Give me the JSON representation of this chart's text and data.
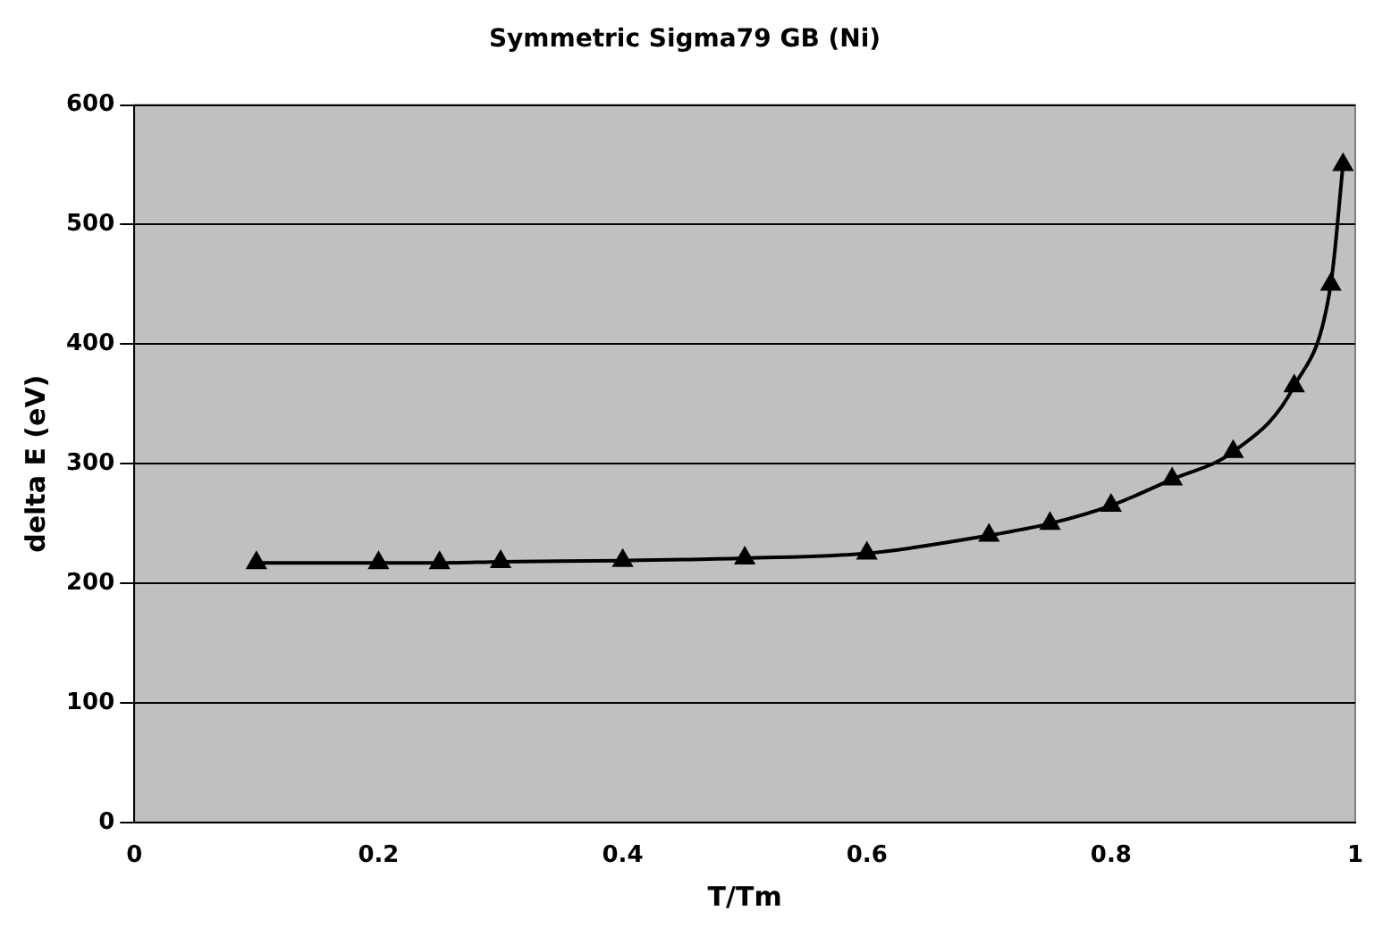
{
  "chart_data": {
    "type": "line",
    "title": "Symmetric Sigma79 GB (Ni)",
    "xlabel": "T/Tm",
    "ylabel": "delta E (eV)",
    "x": [
      0.1,
      0.2,
      0.25,
      0.3,
      0.4,
      0.5,
      0.6,
      0.7,
      0.75,
      0.8,
      0.85,
      0.9,
      0.95,
      0.98,
      0.99
    ],
    "series": [
      {
        "color": "#000000",
        "values": [
          217,
          217,
          217,
          218,
          219,
          221,
          225,
          240,
          250,
          265,
          287,
          310,
          365,
          450,
          550
        ]
      }
    ],
    "xlim": [
      0,
      1
    ],
    "xticks": [
      0,
      0.2,
      0.4,
      0.6,
      0.8,
      1
    ],
    "ylim": [
      0,
      600
    ],
    "yticks": [
      0,
      100,
      200,
      300,
      400,
      500,
      600
    ],
    "grid": "y",
    "legend": false,
    "marker": "triangle",
    "line_style": "solid"
  }
}
